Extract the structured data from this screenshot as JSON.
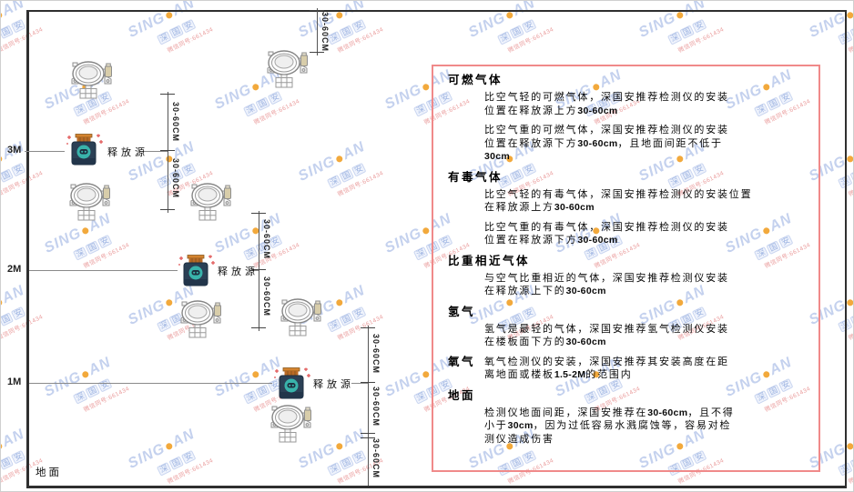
{
  "watermark": {
    "brand_left": "SING",
    "brand_right": "AN",
    "dot_color": "#f2a93c",
    "cn": "深国安",
    "code": "微信同号:661434",
    "text_color": "#c4d1ee",
    "code_color": "#ea9c9c"
  },
  "frame": {
    "ground_label": "地面"
  },
  "axis": {
    "m3": "3M",
    "m2": "2M",
    "m1": "1M"
  },
  "diagram": {
    "release_source_label": "释放源",
    "dim_label": "30-60CM"
  },
  "panel": {
    "border_color": "#f08a8a",
    "sections": [
      {
        "heading": "可燃气体",
        "paragraphs": [
          [
            [
              {
                "t": "比空气轻的可燃气体，深国安推荐检测仪的安装"
              }
            ],
            [
              {
                "t": "位置在释放源上方"
              },
              {
                "t": "30-60cm",
                "b": true
              }
            ]
          ],
          [
            [
              {
                "t": "比空气重的可燃气体，深国安推荐检测仪的安装"
              }
            ],
            [
              {
                "t": "位置在释放源下方"
              },
              {
                "t": "30-60cm",
                "b": true
              },
              {
                "t": "，且地面间距不低于"
              }
            ],
            [
              {
                "t": "30cm",
                "b": true
              }
            ]
          ]
        ]
      },
      {
        "heading": "有毒气体",
        "paragraphs": [
          [
            [
              {
                "t": "比空气轻的有毒气体，深国安推荐检测仪的安装位置"
              }
            ],
            [
              {
                "t": "在释放源上方"
              },
              {
                "t": "30-60cm",
                "b": true
              }
            ]
          ],
          [
            [
              {
                "t": "比空气重的有毒气体，深国安推荐检测仪的安装"
              }
            ],
            [
              {
                "t": "位置在释放源下方"
              },
              {
                "t": "30-60cm",
                "b": true
              }
            ]
          ]
        ]
      },
      {
        "heading": "比重相近气体",
        "paragraphs": [
          [
            [
              {
                "t": "与空气比重相近的气体，深国安推荐检测仪安装"
              }
            ],
            [
              {
                "t": "在释放源上下的"
              },
              {
                "t": "30-60cm",
                "b": true
              }
            ]
          ]
        ]
      },
      {
        "heading": "氢气",
        "paragraphs": [
          [
            [
              {
                "t": "氢气是最轻的气体，深国安推荐氢气检测仪安装"
              }
            ],
            [
              {
                "t": "在楼板面下方的"
              },
              {
                "t": "30-60cm",
                "b": true
              }
            ]
          ]
        ]
      },
      {
        "heading": "氧气",
        "inline": true,
        "paragraphs": [
          [
            [
              {
                "t": "氧气检测仪的安装，深国安推荐其安装高度在距"
              }
            ],
            [
              {
                "t": "离地面或楼板"
              },
              {
                "t": "1.5-2M",
                "b": true
              },
              {
                "t": "的范围内"
              }
            ]
          ]
        ]
      },
      {
        "heading": "地面",
        "paragraphs": [
          [
            [
              {
                "t": "检测仪地面间距，深国安推荐在"
              },
              {
                "t": "30-60cm",
                "b": true
              },
              {
                "t": "，且不得"
              }
            ],
            [
              {
                "t": "小于"
              },
              {
                "t": "30cm",
                "b": true
              },
              {
                "t": "，因为过低容易水溅腐蚀等，容易对检"
              }
            ],
            [
              {
                "t": "测仪造成伤害"
              }
            ]
          ]
        ]
      }
    ]
  }
}
